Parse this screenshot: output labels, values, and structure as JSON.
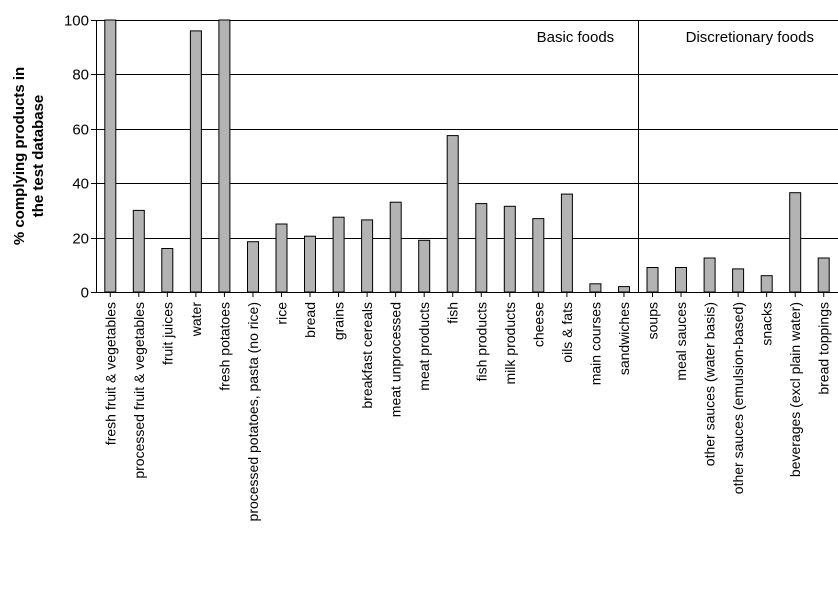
{
  "chart_data": {
    "type": "bar",
    "title": "",
    "xlabel": "",
    "ylabel": [
      "% complying products in",
      "the test database"
    ],
    "ylim": [
      0,
      100
    ],
    "yticks": [
      0,
      20,
      40,
      60,
      80,
      100
    ],
    "grid": "horizontal",
    "bar_color": "#b3b3b3",
    "groups": [
      {
        "label": "Basic foods",
        "first_index": 0,
        "last_index": 18
      },
      {
        "label": "Discretionary foods",
        "first_index": 19,
        "last_index": 25
      }
    ],
    "categories": [
      "fresh fruit & vegetables",
      "processed fruit & vegetables",
      "fruit juices",
      "water",
      "fresh potatoes",
      "processed potatoes, pasta (no rice)",
      "rice",
      "bread",
      "grains",
      "breakfast cereals",
      "meat unprocessed",
      "meat products",
      "fish",
      "fish products",
      "milk products",
      "cheese",
      "oils & fats",
      "main courses",
      "sandwiches",
      "soups",
      "meal sauces",
      "other sauces (water basis)",
      "other sauces (emulsion-based)",
      "snacks",
      "beverages (excl plain water)",
      "bread toppings"
    ],
    "values": [
      100,
      30,
      16,
      96,
      100,
      18.5,
      25,
      20.5,
      27.5,
      26.5,
      33,
      19,
      57.5,
      32.5,
      31.5,
      27,
      36,
      3,
      2,
      9,
      9,
      12.5,
      8.5,
      6,
      36.5,
      12.5
    ]
  }
}
